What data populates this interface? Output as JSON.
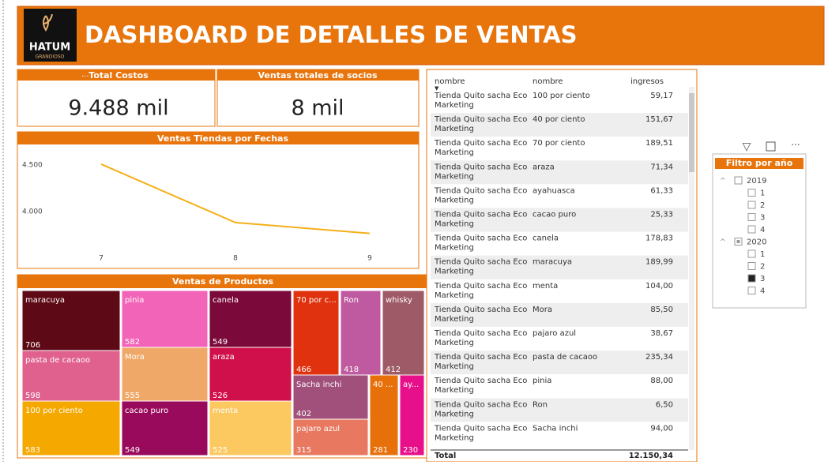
{
  "header": {
    "logo": "HATUM",
    "logo_sub": "GRANDIOSO",
    "title": "DASHBOARD DE DETALLES DE VENTAS"
  },
  "cards": [
    {
      "title": "Total Costos",
      "value": "9.488 mil"
    },
    {
      "title": "Ventas totales de socios",
      "value": "8 mil"
    }
  ],
  "chart_data": [
    {
      "type": "line",
      "title": "Ventas Tiendas por Fechas",
      "categories": [
        "7",
        "8",
        "9"
      ],
      "values": [
        4510,
        3883,
        3767
      ],
      "color": "#f5b01a",
      "ylim": [
        3560,
        4620
      ],
      "yticks": [
        {
          "value": 4000,
          "label": "4.000"
        },
        {
          "value": 4500,
          "label": "4.500"
        }
      ],
      "grid": false
    },
    {
      "type": "treemap",
      "title": "Ventas de Productos",
      "categories": [
        "maracuya",
        "pasta de cacaoo",
        "100 por ciento",
        "pinia",
        "Mora",
        "cacao puro",
        "canela",
        "araza",
        "menta",
        "70 por c...",
        "Ron",
        "whisky",
        "Sacha inchi",
        "pajaro azul",
        "40 ...",
        "ay..."
      ],
      "values": [
        706,
        598,
        583,
        582,
        555,
        549,
        549,
        526,
        525,
        466,
        418,
        412,
        402,
        315,
        281,
        230
      ],
      "colors": [
        "#5e0a16",
        "#e0608e",
        "#f5a800",
        "#f264b8",
        "#f0a868",
        "#9a0a5c",
        "#7b0a3a",
        "#d0104a",
        "#fcc860",
        "#e0320f",
        "#c05aa0",
        "#9e5a66",
        "#a0507a",
        "#e87860",
        "#e8700a",
        "#e8108a"
      ]
    }
  ],
  "table": {
    "columns": [
      "nombre",
      "nombre",
      "ingresos"
    ],
    "rows": [
      [
        "Tienda Quito sacha Eco Marketing",
        "100 por ciento",
        "59,17"
      ],
      [
        "Tienda Quito sacha Eco Marketing",
        "40 por ciento",
        "151,67"
      ],
      [
        "Tienda Quito sacha Eco Marketing",
        "70 por ciento",
        "189,51"
      ],
      [
        "Tienda Quito sacha Eco Marketing",
        "araza",
        "71,34"
      ],
      [
        "Tienda Quito sacha Eco Marketing",
        "ayahuasca",
        "61,33"
      ],
      [
        "Tienda Quito sacha Eco Marketing",
        "cacao puro",
        "25,33"
      ],
      [
        "Tienda Quito sacha Eco Marketing",
        "canela",
        "178,83"
      ],
      [
        "Tienda Quito sacha Eco Marketing",
        "maracuya",
        "189,99"
      ],
      [
        "Tienda Quito sacha Eco Marketing",
        "menta",
        "104,00"
      ],
      [
        "Tienda Quito sacha Eco Marketing",
        "Mora",
        "85,50"
      ],
      [
        "Tienda Quito sacha Eco Marketing",
        "pajaro azul",
        "38,67"
      ],
      [
        "Tienda Quito sacha Eco Marketing",
        "pasta de cacaoo",
        "235,34"
      ],
      [
        "Tienda Quito sacha Eco Marketing",
        "pinia",
        "88,00"
      ],
      [
        "Tienda Quito sacha Eco Marketing",
        "Ron",
        "6,50"
      ],
      [
        "Tienda Quito sacha Eco Marketing",
        "Sacha inchi",
        "94,00"
      ]
    ],
    "total": [
      "Total",
      "12.150,34"
    ]
  },
  "slicer": {
    "title": "Filtro por año",
    "years": [
      {
        "label": "2019",
        "quarters": [
          {
            "label": "1",
            "checked": false
          },
          {
            "label": "2",
            "checked": false
          },
          {
            "label": "3",
            "checked": false
          },
          {
            "label": "4",
            "checked": false
          }
        ]
      },
      {
        "label": "2020",
        "quarters": [
          {
            "label": "1",
            "checked": false
          },
          {
            "label": "2",
            "checked": false
          },
          {
            "label": "3",
            "checked": true
          },
          {
            "label": "4",
            "checked": false
          }
        ]
      }
    ]
  }
}
